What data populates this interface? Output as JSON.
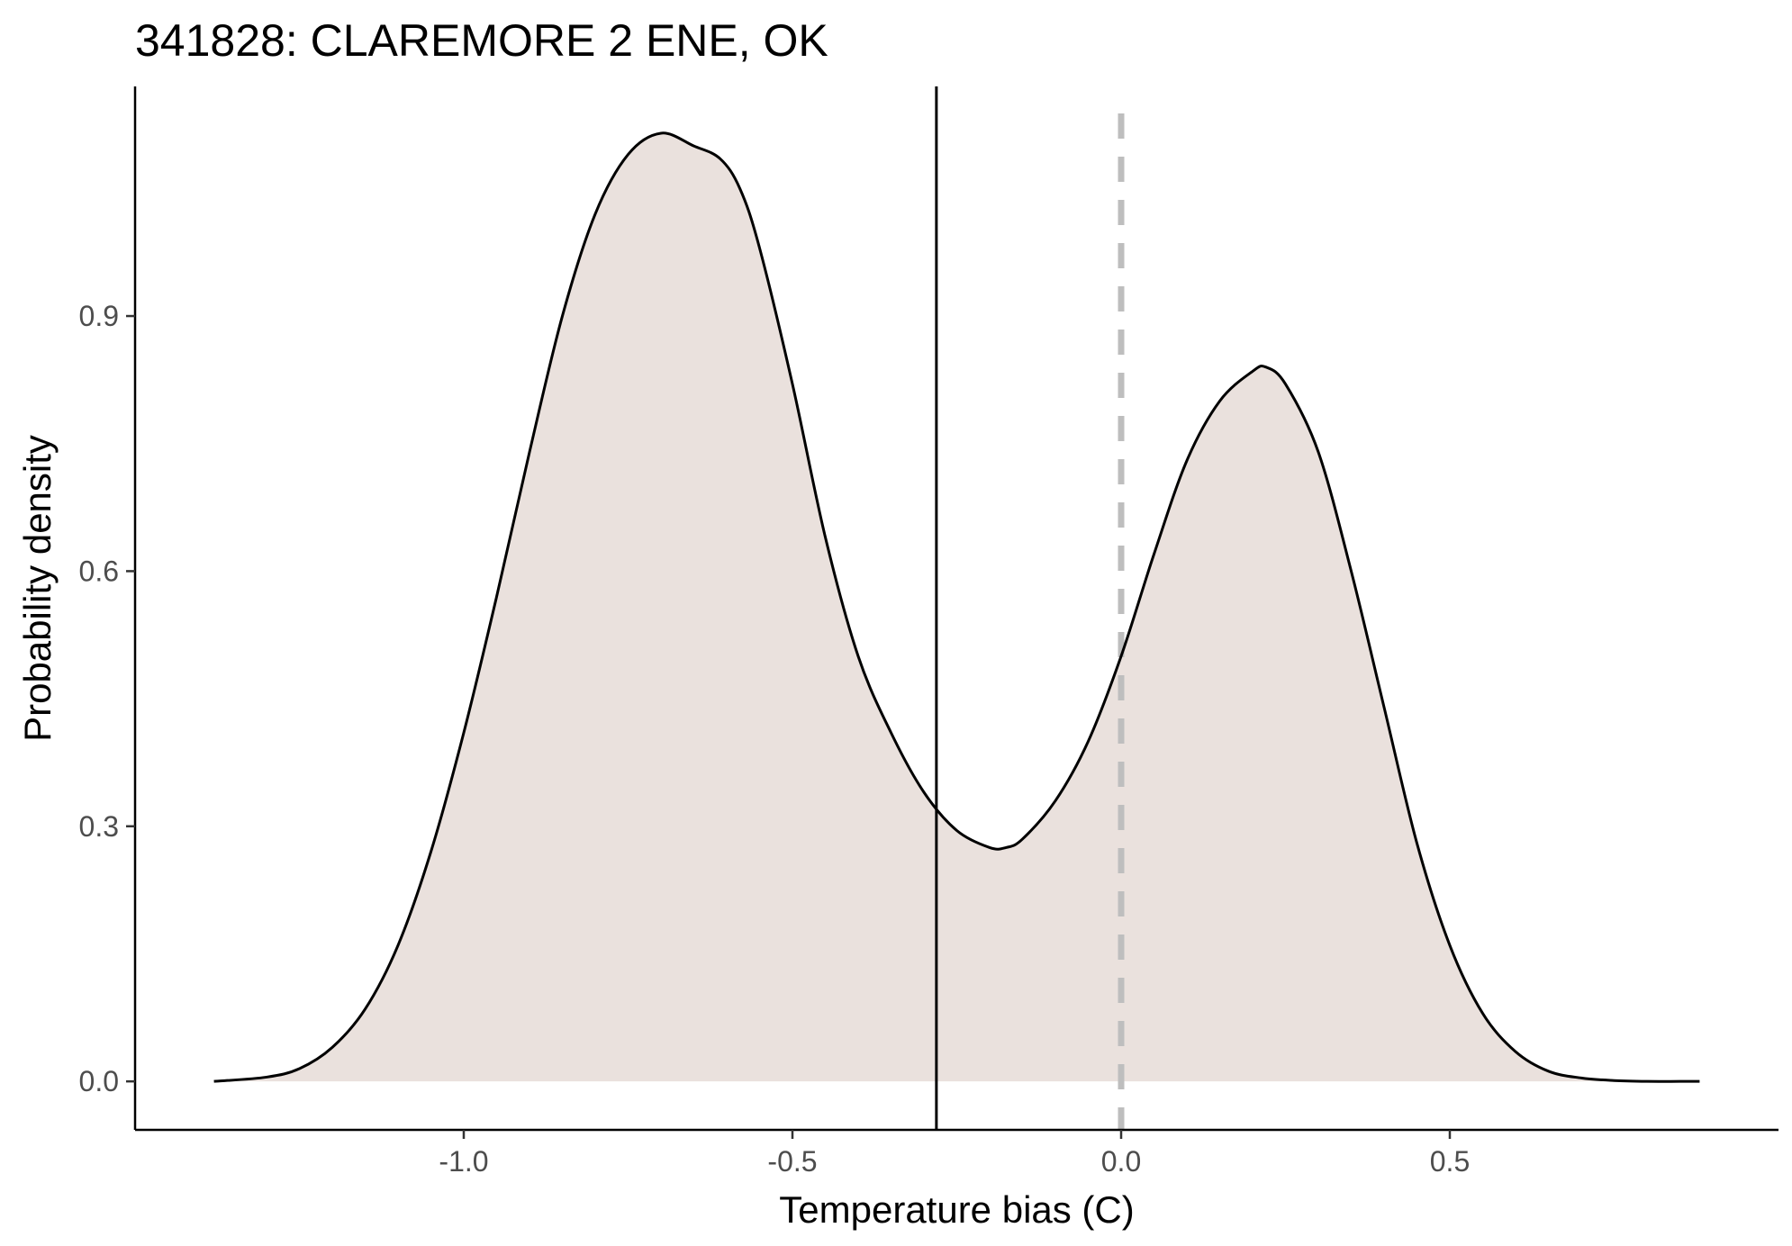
{
  "chart_data": {
    "type": "area",
    "title": "341828: CLAREMORE 2 ENE, OK",
    "xlabel": "Temperature bias (C)",
    "ylabel": "Probability density",
    "xlim": [
      -1.5,
      1.0
    ],
    "ylim": [
      -0.057,
      1.17
    ],
    "x_ticks": [
      -1.0,
      -0.5,
      0.0,
      0.5
    ],
    "x_tick_labels": [
      "-1.0",
      "-0.5",
      "0.0",
      "0.5"
    ],
    "y_ticks": [
      0.0,
      0.3,
      0.6,
      0.9
    ],
    "y_tick_labels": [
      "0.0",
      "0.3",
      "0.6",
      "0.9"
    ],
    "grid": false,
    "fill_color": "#EAE1DD",
    "line_color": "#000000",
    "reference_lines": [
      {
        "x": -0.281,
        "style": "solid",
        "color": "#000000"
      },
      {
        "x": 0.0,
        "style": "dashed",
        "color": "#BEBEBE"
      }
    ],
    "series": [
      {
        "x": [
          -1.38,
          -1.3,
          -1.25,
          -1.2,
          -1.15,
          -1.1,
          -1.05,
          -1.0,
          -0.95,
          -0.9,
          -0.85,
          -0.8,
          -0.75,
          -0.7,
          -0.65,
          -0.61,
          -0.58,
          -0.55,
          -0.5,
          -0.45,
          -0.4,
          -0.35,
          -0.3,
          -0.25,
          -0.2,
          -0.175,
          -0.15,
          -0.1,
          -0.05,
          0.0,
          0.05,
          0.1,
          0.15,
          0.2,
          0.22,
          0.25,
          0.3,
          0.35,
          0.4,
          0.45,
          0.5,
          0.55,
          0.6,
          0.65,
          0.7,
          0.75,
          0.8,
          0.85,
          0.88
        ],
        "y": [
          0.0,
          0.005,
          0.015,
          0.04,
          0.085,
          0.16,
          0.27,
          0.41,
          0.57,
          0.74,
          0.9,
          1.02,
          1.09,
          1.115,
          1.1,
          1.085,
          1.05,
          0.98,
          0.82,
          0.64,
          0.5,
          0.41,
          0.34,
          0.295,
          0.275,
          0.275,
          0.285,
          0.33,
          0.4,
          0.5,
          0.62,
          0.73,
          0.8,
          0.835,
          0.84,
          0.82,
          0.74,
          0.6,
          0.44,
          0.28,
          0.16,
          0.08,
          0.035,
          0.012,
          0.004,
          0.001,
          0.0,
          0.0,
          0.0
        ]
      }
    ]
  }
}
